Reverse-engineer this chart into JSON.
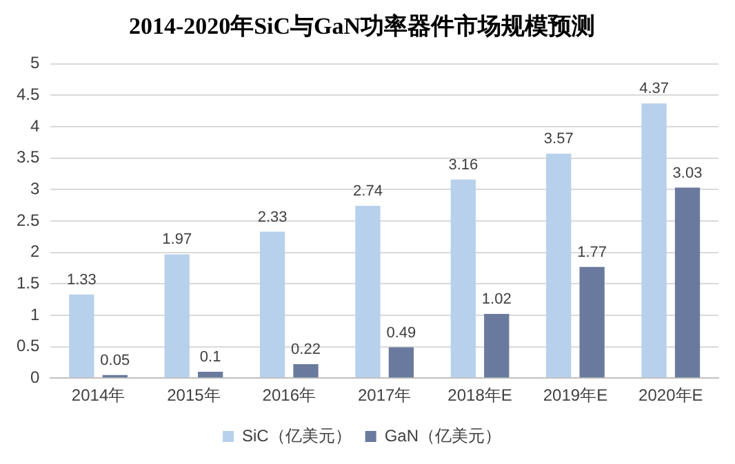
{
  "chart_data": {
    "type": "bar",
    "title": "2014-2020年SiC与GaN功率器件市场规模预测",
    "categories": [
      "2014年",
      "2015年",
      "2016年",
      "2017年",
      "2018年E",
      "2019年E",
      "2020年E"
    ],
    "series": [
      {
        "name": "SiC（亿美元）",
        "color": "#b7d0ec",
        "values": [
          1.33,
          1.97,
          2.33,
          2.74,
          3.16,
          3.57,
          4.37
        ]
      },
      {
        "name": "GaN（亿美元）",
        "color": "#6a7a9e",
        "values": [
          0.05,
          0.1,
          0.22,
          0.49,
          1.02,
          1.77,
          3.03
        ]
      }
    ],
    "ylim": [
      0,
      5
    ],
    "yticks": [
      0,
      0.5,
      1,
      1.5,
      2,
      2.5,
      3,
      3.5,
      4,
      4.5,
      5
    ],
    "grid": "y",
    "legend": "bottom",
    "data_labels": true
  }
}
